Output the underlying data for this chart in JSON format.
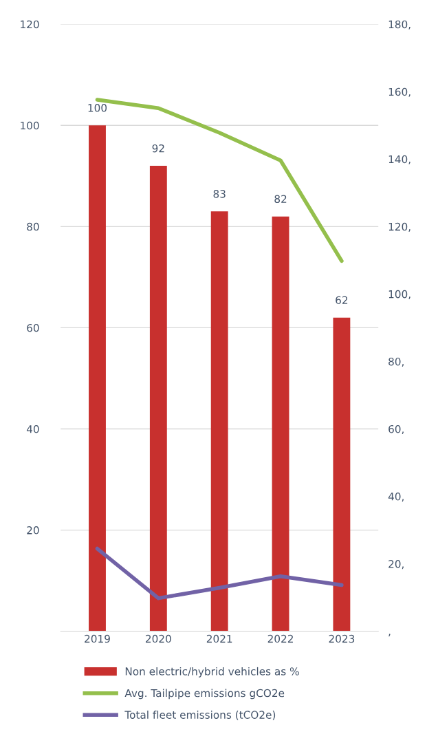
{
  "chart_data": {
    "type": "bar",
    "categories": [
      "2019",
      "2020",
      "2021",
      "2022",
      "2023"
    ],
    "series": [
      {
        "name": "Non electric/hybrid vehicles as %",
        "color": "#c8302e",
        "values": [
          100,
          92,
          83,
          82,
          62
        ],
        "value_labels": [
          "100",
          "92",
          "83",
          "82",
          "62"
        ]
      },
      {
        "name": "Avg. Tailpipe emissions gCO2e",
        "type": "line",
        "axis": "y2",
        "color": "#94bf4c",
        "values": [
          157.6,
          155.1,
          147.8,
          139.6,
          109.8
        ]
      },
      {
        "name": "Total fleet emissions (tCO2e)",
        "type": "line",
        "axis": "y2",
        "color": "#7162a6",
        "values": [
          24.5,
          9.8,
          12.9,
          16.3,
          13.7
        ]
      }
    ],
    "ylim": [
      0,
      120
    ],
    "yticks": [
      20,
      40,
      60,
      80,
      100,
      120
    ],
    "y2lim": [
      0,
      180
    ],
    "y2ticks": [
      {
        "value": 0,
        "label": ","
      },
      {
        "value": 20,
        "label": "20,"
      },
      {
        "value": 40,
        "label": "40,"
      },
      {
        "value": 60,
        "label": "60,"
      },
      {
        "value": 80,
        "label": "80,"
      },
      {
        "value": 100,
        "label": "100,"
      },
      {
        "value": 120,
        "label": "120,"
      },
      {
        "value": 140,
        "label": "140,"
      },
      {
        "value": 160,
        "label": "160,"
      },
      {
        "value": 180,
        "label": "180,"
      }
    ],
    "grid": "y",
    "legend": "bottom",
    "marker": "none",
    "line_style": "solid"
  }
}
